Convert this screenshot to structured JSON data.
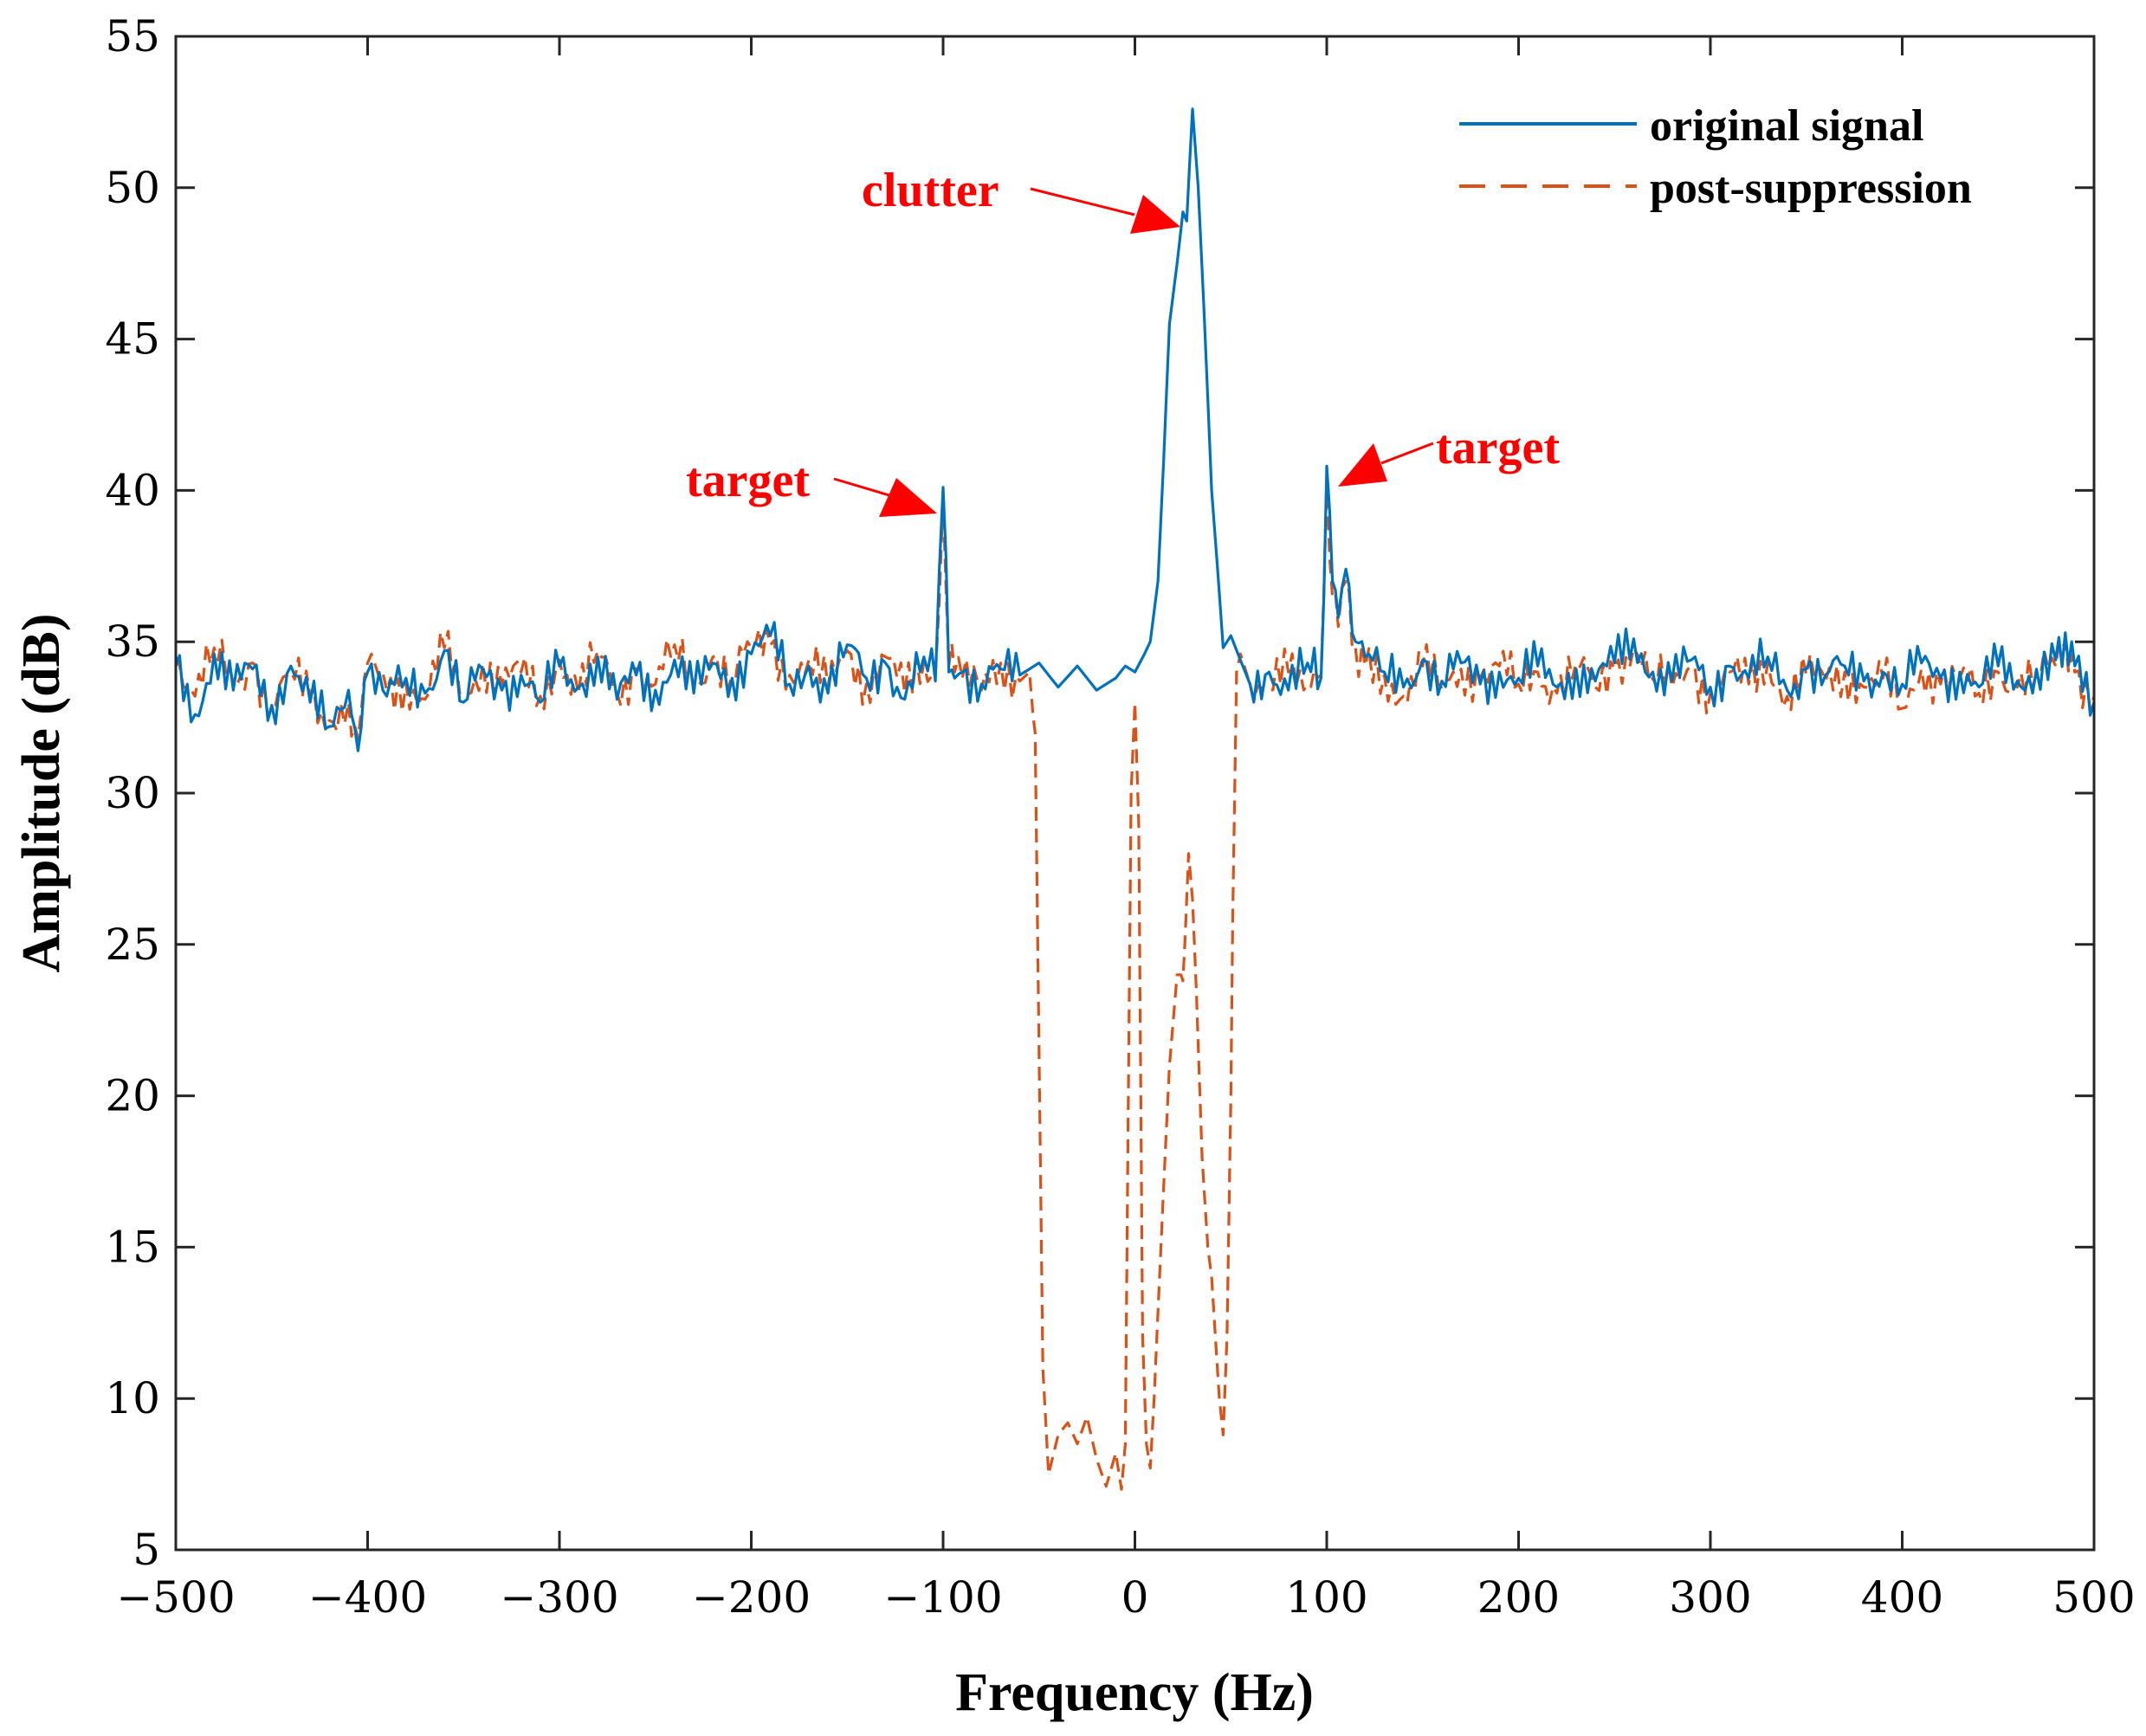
{
  "chart_data": {
    "type": "line",
    "title": "",
    "xlabel": "Frequency (Hz)",
    "ylabel": "Amplitude (dB)",
    "xlim": [
      -500,
      500
    ],
    "ylim": [
      5,
      55
    ],
    "xticks": [
      -500,
      -400,
      -300,
      -200,
      -100,
      0,
      100,
      200,
      300,
      400,
      500
    ],
    "xtick_labels": [
      "−500",
      "−400",
      "−300",
      "−200",
      "−100",
      "0",
      "100",
      "200",
      "300",
      "400",
      "500"
    ],
    "yticks": [
      5,
      10,
      15,
      20,
      25,
      30,
      35,
      40,
      45,
      50,
      55
    ],
    "ytick_labels": [
      "5",
      "10",
      "15",
      "20",
      "25",
      "30",
      "35",
      "40",
      "45",
      "50",
      "55"
    ],
    "grid": false,
    "legend_position": "top-right",
    "series": [
      {
        "name": "original signal",
        "color": "#0072bd",
        "style": "solid",
        "noise_floor_db": 33.8,
        "x": [
          -500,
          -490,
          -480,
          -470,
          -460,
          -450,
          -440,
          -430,
          -420,
          -410,
          -405,
          -400,
          -390,
          -380,
          -370,
          -360,
          -350,
          -340,
          -330,
          -320,
          -310,
          -300,
          -290,
          -280,
          -270,
          -260,
          -250,
          -240,
          -230,
          -220,
          -210,
          -200,
          -190,
          -180,
          -170,
          -160,
          -150,
          -140,
          -130,
          -120,
          -110,
          -104,
          -100,
          -97,
          -94,
          -90,
          -80,
          -70,
          -60,
          -50,
          -40,
          -30,
          -20,
          -10,
          -5,
          0,
          5,
          8,
          12,
          15,
          18,
          22,
          25,
          27,
          30,
          33,
          36,
          40,
          43,
          46,
          50,
          55,
          60,
          70,
          80,
          90,
          97,
          100,
          103,
          106,
          110,
          115,
          120,
          130,
          140,
          150,
          160,
          170,
          180,
          190,
          200,
          210,
          220,
          230,
          240,
          250,
          260,
          270,
          280,
          290,
          300,
          310,
          320,
          330,
          340,
          350,
          360,
          370,
          380,
          390,
          400,
          410,
          420,
          430,
          440,
          450,
          460,
          470,
          480,
          485,
          490,
          500
        ],
        "values": [
          34.2,
          32.6,
          34.6,
          33.4,
          34.1,
          32.9,
          34.2,
          33.0,
          32.2,
          33.4,
          31.4,
          34.0,
          33.2,
          33.8,
          33.3,
          34.7,
          33.0,
          34.1,
          33.4,
          33.9,
          33.0,
          34.2,
          33.5,
          34.5,
          33.1,
          33.9,
          33.4,
          34.4,
          33.3,
          34.3,
          33.8,
          34.6,
          35.2,
          33.6,
          34.2,
          33.3,
          34.9,
          33.8,
          34.3,
          33.1,
          34.5,
          33.7,
          40.1,
          34.0,
          33.8,
          34.0,
          33.6,
          34.1,
          33.9,
          34.3,
          33.5,
          34.2,
          33.4,
          33.8,
          34.2,
          34.0,
          34.6,
          35.0,
          37.0,
          41.0,
          45.5,
          47.5,
          49.2,
          48.9,
          52.6,
          50.0,
          46.0,
          40.0,
          37.5,
          34.8,
          35.2,
          34.4,
          33.6,
          34.0,
          33.4,
          34.3,
          33.8,
          40.8,
          37.0,
          35.8,
          37.4,
          35.0,
          34.5,
          34.0,
          33.5,
          34.4,
          33.7,
          34.3,
          33.6,
          34.0,
          33.8,
          34.2,
          33.5,
          34.1,
          33.7,
          34.3,
          35.1,
          34.0,
          33.7,
          34.4,
          33.5,
          34.2,
          33.8,
          34.5,
          33.4,
          34.1,
          33.9,
          34.2,
          33.7,
          34.0,
          33.6,
          34.3,
          33.8,
          34.0,
          33.5,
          34.2,
          33.7,
          34.1,
          34.4,
          35.3,
          34.2,
          33.0
        ]
      },
      {
        "name": "post-suppression",
        "color": "#d95319",
        "style": "dashed",
        "x": [
          -500,
          -490,
          -480,
          -470,
          -460,
          -450,
          -440,
          -430,
          -420,
          -410,
          -405,
          -400,
          -390,
          -380,
          -370,
          -360,
          -350,
          -340,
          -330,
          -320,
          -310,
          -300,
          -290,
          -280,
          -270,
          -260,
          -250,
          -240,
          -230,
          -220,
          -210,
          -200,
          -190,
          -180,
          -170,
          -160,
          -150,
          -140,
          -130,
          -120,
          -110,
          -104,
          -100,
          -97,
          -94,
          -90,
          -80,
          -70,
          -60,
          -55,
          -53,
          -52,
          -48,
          -45,
          -40,
          -35,
          -30,
          -25,
          -20,
          -15,
          -10,
          -7,
          -5,
          -2,
          0,
          2,
          4,
          6,
          8,
          10,
          15,
          18,
          22,
          24,
          25,
          26,
          28,
          30,
          32,
          35,
          38,
          40,
          42,
          44,
          46,
          48,
          50,
          51,
          52,
          53,
          55,
          60,
          70,
          80,
          90,
          97,
          100,
          103,
          106,
          110,
          115,
          120,
          130,
          140,
          150,
          160,
          170,
          180,
          190,
          200,
          210,
          220,
          230,
          240,
          250,
          260,
          270,
          280,
          290,
          300,
          310,
          320,
          330,
          340,
          350,
          360,
          370,
          380,
          390,
          400,
          410,
          420,
          430,
          440,
          450,
          460,
          470,
          480,
          485,
          490,
          500
        ],
        "values": [
          34.5,
          33.2,
          34.8,
          33.6,
          34.3,
          32.8,
          34.0,
          33.2,
          32.4,
          33.0,
          31.8,
          34.3,
          33.4,
          33.6,
          33.1,
          34.8,
          33.2,
          34.3,
          33.6,
          34.0,
          33.2,
          34.4,
          33.3,
          34.7,
          33.3,
          34.1,
          33.6,
          34.9,
          33.5,
          34.5,
          33.9,
          34.8,
          34.9,
          33.9,
          34.4,
          33.5,
          34.7,
          33.6,
          34.5,
          33.3,
          34.3,
          33.9,
          39.8,
          34.2,
          34.0,
          33.8,
          33.4,
          34.3,
          33.7,
          34.0,
          32.5,
          32.0,
          11.0,
          7.5,
          8.8,
          9.2,
          8.5,
          9.4,
          8.0,
          7.1,
          8.2,
          7.0,
          8.5,
          30.0,
          33.0,
          29.0,
          12.0,
          8.5,
          7.7,
          10.0,
          17.0,
          21.0,
          24.0,
          24.0,
          23.8,
          25.0,
          28.0,
          26.5,
          23.5,
          18.0,
          15.0,
          14.0,
          12.0,
          10.0,
          8.8,
          12.0,
          20.0,
          26.0,
          30.0,
          34.0,
          34.6,
          33.6,
          33.4,
          34.0,
          33.6,
          33.9,
          40.3,
          36.5,
          35.5,
          37.0,
          34.8,
          34.2,
          33.9,
          33.2,
          34.2,
          33.5,
          34.1,
          33.8,
          34.2,
          33.6,
          34.0,
          33.3,
          34.3,
          33.5,
          34.1,
          34.8,
          33.8,
          33.5,
          34.2,
          33.3,
          34.0,
          33.6,
          34.3,
          33.2,
          33.9,
          33.7,
          34.0,
          33.5,
          33.8,
          32.8,
          34.1,
          33.6,
          33.8,
          33.3,
          34.0,
          33.5,
          33.9,
          34.2,
          35.0,
          34.0,
          33.2
        ]
      }
    ],
    "annotations": [
      {
        "text": "clutter",
        "point_x": 28,
        "point_y": 49
      },
      {
        "text": "target",
        "point_x": -100,
        "point_y": 39.5
      },
      {
        "text": "target",
        "point_x": 100,
        "point_y": 40.2
      }
    ]
  }
}
